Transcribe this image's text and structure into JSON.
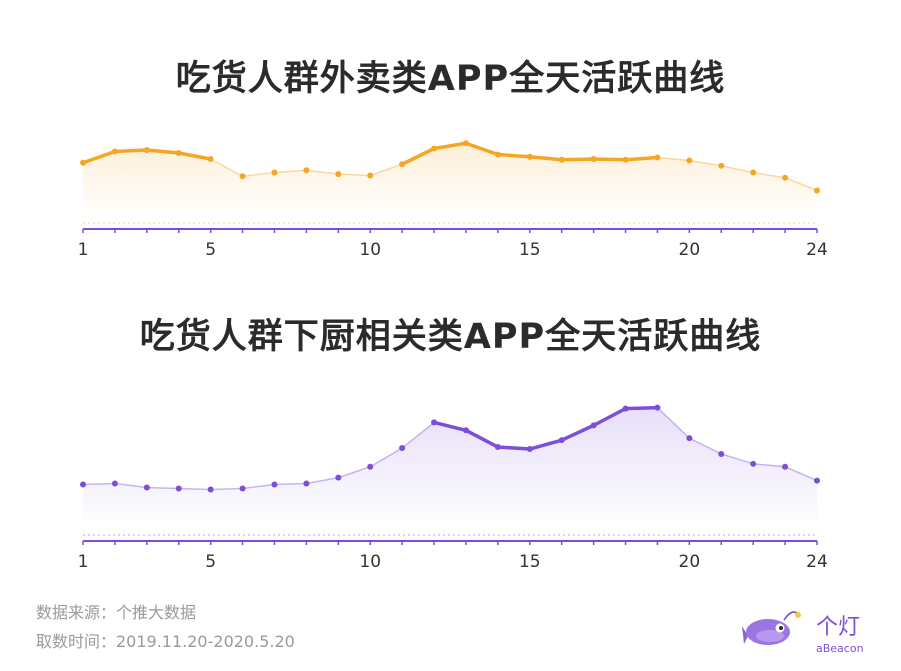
{
  "chart_data": [
    {
      "type": "area",
      "title": "吃货人群外卖类APP全天活跃曲线",
      "x": [
        1,
        2,
        3,
        4,
        5,
        6,
        7,
        8,
        9,
        10,
        11,
        12,
        13,
        14,
        15,
        16,
        17,
        18,
        19,
        20,
        21,
        22,
        23,
        24
      ],
      "tick_labels": [
        "1",
        "5",
        "10",
        "15",
        "20",
        "24"
      ],
      "tick_values": [
        1,
        5,
        10,
        15,
        20,
        24
      ],
      "values": [
        63,
        78,
        80,
        76,
        68,
        45,
        50,
        53,
        48,
        46,
        61,
        82,
        89,
        74,
        71,
        67,
        68,
        67,
        70,
        66,
        59,
        50,
        43,
        26
      ],
      "ylim": [
        0,
        120
      ],
      "highlight_ranges": [
        [
          1,
          5
        ],
        [
          11,
          19
        ]
      ],
      "color": "#f5a623",
      "grid": false
    },
    {
      "type": "area",
      "title": "吃货人群下厨相关类APP全天活跃曲线",
      "x": [
        1,
        2,
        3,
        4,
        5,
        6,
        7,
        8,
        9,
        10,
        11,
        12,
        13,
        14,
        15,
        16,
        17,
        18,
        19,
        20,
        21,
        22,
        23,
        24
      ],
      "tick_labels": [
        "1",
        "5",
        "10",
        "15",
        "20",
        "24"
      ],
      "tick_values": [
        1,
        5,
        10,
        15,
        20,
        24
      ],
      "values": [
        36,
        37,
        33,
        32,
        31,
        32,
        36,
        37,
        43,
        54,
        73,
        99,
        91,
        74,
        72,
        81,
        96,
        113,
        114,
        83,
        67,
        57,
        54,
        40
      ],
      "ylim": [
        0,
        140
      ],
      "highlight_ranges": [
        [
          12,
          19
        ]
      ],
      "color": "#7b4fd8",
      "grid": false
    }
  ],
  "footer": {
    "source": "数据来源：个推大数据",
    "period": "取数时间：2019.11.20-2020.5.20"
  },
  "logo": {
    "cn": "个灯",
    "en": "aBeacon"
  }
}
